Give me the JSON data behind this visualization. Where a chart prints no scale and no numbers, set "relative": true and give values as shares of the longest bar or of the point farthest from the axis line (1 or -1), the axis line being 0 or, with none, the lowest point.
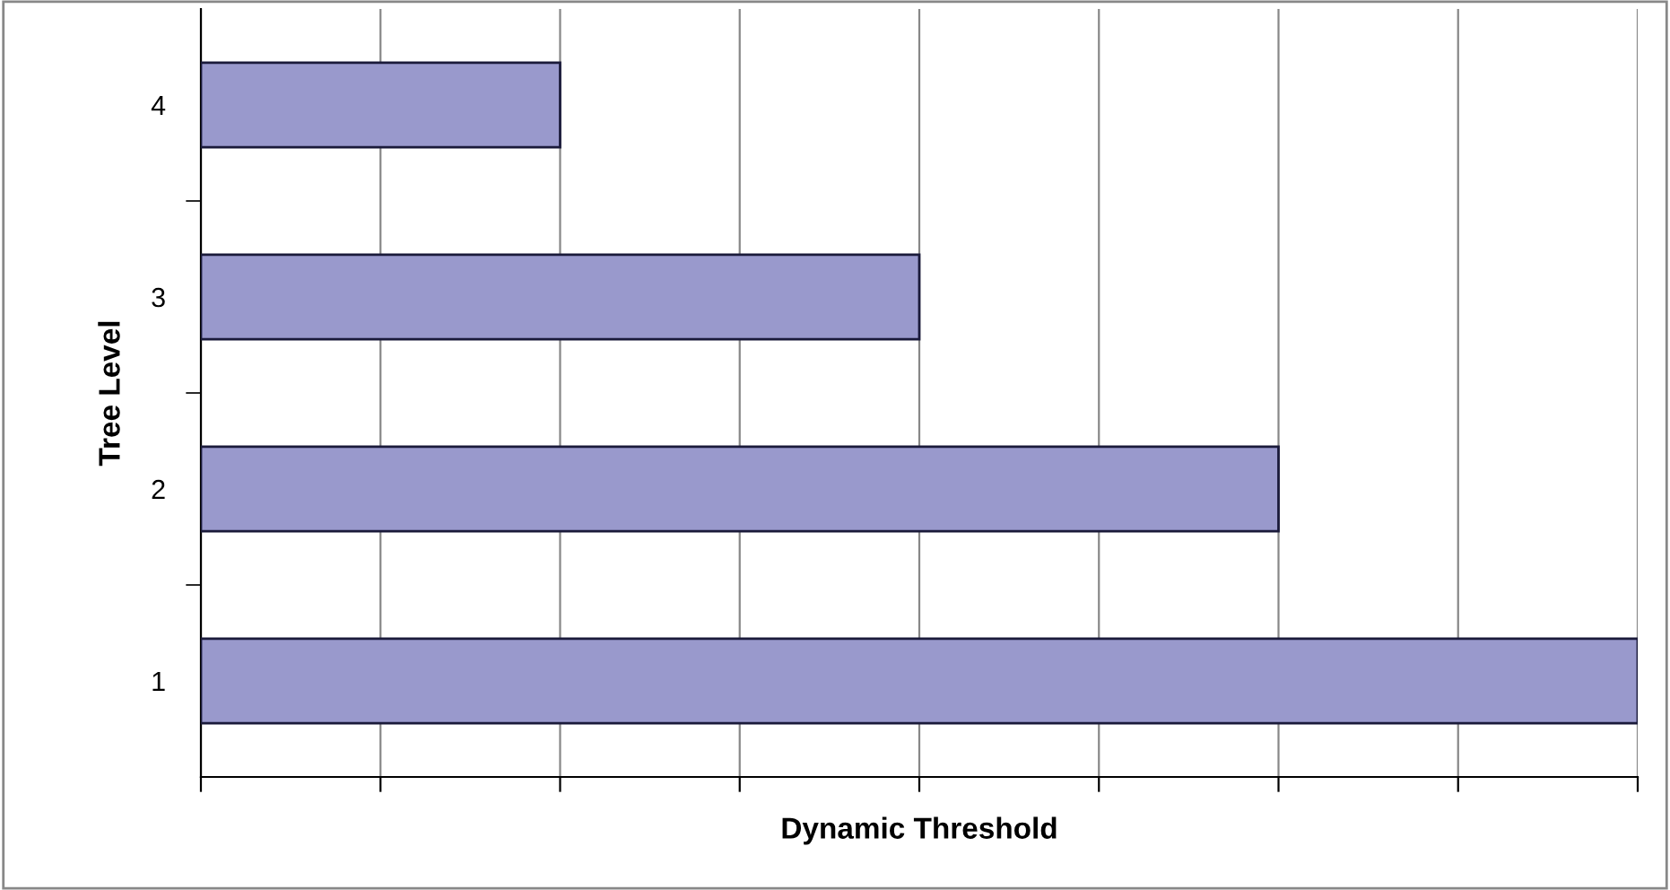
{
  "chart_data": {
    "type": "bar",
    "orientation": "horizontal",
    "relative": true,
    "categories": [
      "4",
      "3",
      "2",
      "1"
    ],
    "values": [
      0.25,
      0.5,
      0.75,
      1
    ],
    "color": "#9999cc",
    "xlabel": "Dynamic Threshold",
    "ylabel": "Tree Level",
    "grid": "x",
    "legend": false
  }
}
